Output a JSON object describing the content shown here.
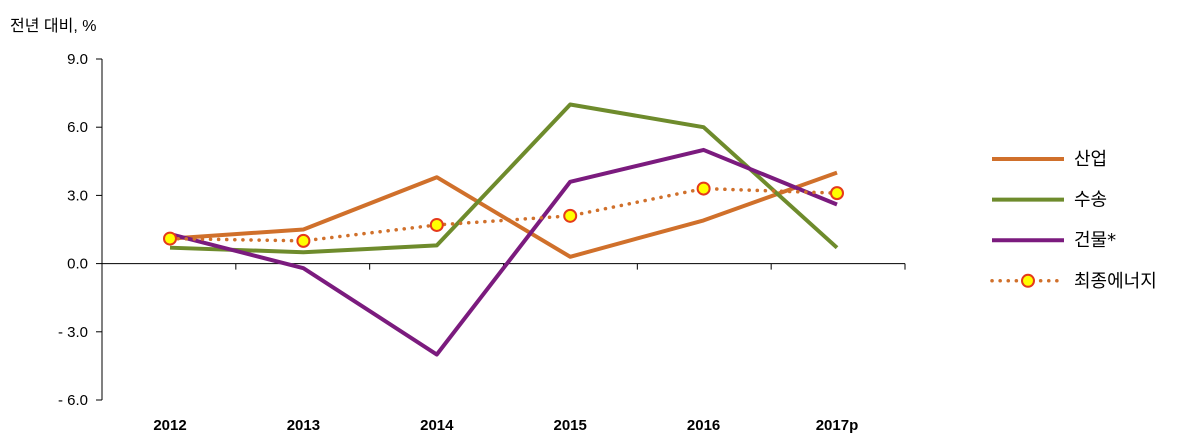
{
  "chart_data": {
    "type": "line",
    "ylabel": "전년 대비, %",
    "categories": [
      "2012",
      "2013",
      "2014",
      "2015",
      "2016",
      "2017p"
    ],
    "ylim": [
      -6.0,
      9.0
    ],
    "yticks": [
      9.0,
      6.0,
      3.0,
      0.0,
      -3.0,
      -6.0
    ],
    "ytick_labels": [
      "9.0",
      "6.0",
      "3.0",
      "0.0",
      "- 3.0",
      "- 6.0"
    ],
    "grid": false,
    "legend_position": "right",
    "series": [
      {
        "name": "산업",
        "values": [
          1.1,
          1.5,
          3.8,
          0.3,
          1.9,
          4.0
        ],
        "color": "#D0702B",
        "style": "solid",
        "markers": false
      },
      {
        "name": "수송",
        "values": [
          0.7,
          0.5,
          0.8,
          7.0,
          6.0,
          0.7
        ],
        "color": "#6E8B2C",
        "style": "solid",
        "markers": false
      },
      {
        "name": "건물*",
        "values": [
          1.3,
          -0.2,
          -4.0,
          3.6,
          5.0,
          2.6
        ],
        "color": "#7B1B7E",
        "style": "solid",
        "markers": false
      },
      {
        "name": "최종에너지",
        "values": [
          1.1,
          1.0,
          1.7,
          2.1,
          3.3,
          3.1
        ],
        "color": "#D0702B",
        "style": "dotted",
        "markers": true,
        "marker_fill": "#FFFF00",
        "marker_edge": "#E53A1A"
      }
    ]
  }
}
